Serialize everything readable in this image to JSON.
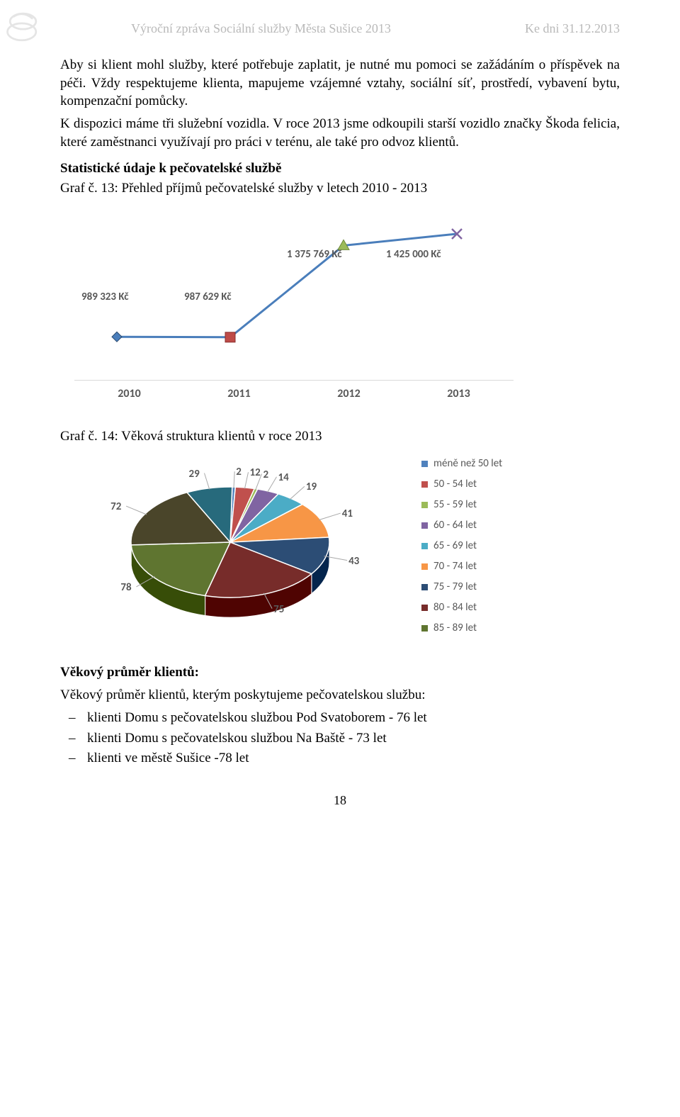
{
  "header": {
    "left": "Výroční zpráva Sociální služby Města Sušice 2013",
    "right": "Ke dni 31.12.2013"
  },
  "paragraphs": {
    "p1": "Aby si klient mohl služby, které potřebuje zaplatit, je nutné mu pomoci se zažádáním o příspěvek na péči. Vždy respektujeme klienta, mapujeme vzájemné vztahy, sociální síť, prostředí, vybavení bytu, kompenzační pomůcky.",
    "p2": "K dispozici máme tři služební vozidla. V roce 2013 jsme odkoupili starší vozidlo značky Škoda felicia, které zaměstnanci využívají pro práci v terénu, ale také pro odvoz klientů.",
    "p3": "Statistické údaje k pečovatelské službě",
    "p4": "Graf č. 13: Přehled příjmů pečovatelské služby v letech 2010 - 2013",
    "p5": "Graf č. 14: Věková struktura klientů v roce 2013",
    "p6head": "Věkový průměr klientů:",
    "p6": "Věkový průměr klientů, kterým poskytujeme pečovatelskou službu:",
    "li1": "klienti Domu s pečovatelskou službou Pod Svatoborem - 76 let",
    "li2": "klienti Domu s pečovatelskou službou Na Baště - 73 let",
    "li3": "klienti ve městě Sušice -78 let"
  },
  "line_chart": {
    "type": "line",
    "line_color": "#4a7ebb",
    "line_width": 3,
    "marker_stroke": "#be4b48",
    "grid_color": "#d9d9d9",
    "label_fontsize": 15,
    "xlabel_fontsize": 16,
    "categories": [
      "2010",
      "2011",
      "2012",
      "2013"
    ],
    "values": [
      989323,
      987629,
      1375769,
      1425000
    ],
    "value_labels": [
      "989 323 Kč",
      "987 629 Kč",
      "1 375 769 Kč",
      "1 425 000 Kč"
    ],
    "markers": [
      "diamond",
      "square",
      "triangle",
      "x"
    ],
    "ylim": [
      900000,
      1500000
    ]
  },
  "pie_chart": {
    "type": "pie-3d",
    "label_fontsize": 15,
    "stroke": "#ffffff",
    "slices": [
      {
        "label": "méně než 50 let",
        "value": 2,
        "color": "#4f81bd"
      },
      {
        "label": "50 - 54 let",
        "value": 12,
        "color": "#c0504d"
      },
      {
        "label": "55 - 59 let",
        "value": 2,
        "color": "#9bbb59"
      },
      {
        "label": "60 - 64 let",
        "value": 14,
        "color": "#8064a2"
      },
      {
        "label": "65 - 69 let",
        "value": 19,
        "color": "#4bacc6"
      },
      {
        "label": "70 - 74 let",
        "value": 41,
        "color": "#f79646"
      },
      {
        "label": "75 - 79 let",
        "value": 43,
        "color": "#2c4d75"
      },
      {
        "label": "80 - 84 let",
        "value": 75,
        "color": "#772c2a"
      },
      {
        "label": "85 - 89 let",
        "value": 78,
        "color": "#5f7530"
      }
    ],
    "extra_slices": [
      {
        "label_extra": "72",
        "value": 72,
        "color": "#4a452a"
      },
      {
        "label_extra": "29",
        "value": 29,
        "color": "#276a7c"
      }
    ]
  },
  "page_number": "18"
}
